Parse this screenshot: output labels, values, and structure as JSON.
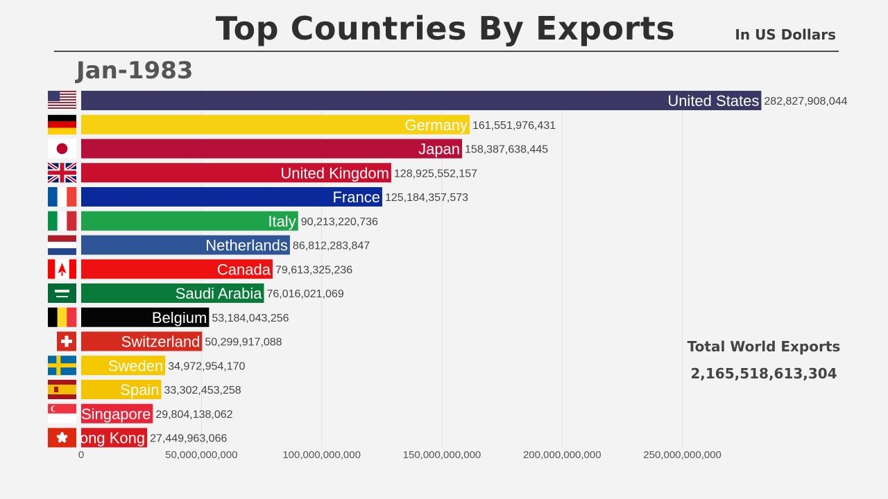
{
  "header": {
    "title": "Top Countries By Exports",
    "subtitle": "In US Dollars",
    "date": "Jan-1983"
  },
  "summary": {
    "label": "Total World Exports",
    "value": "2,165,518,613,304"
  },
  "chart_data": {
    "type": "bar",
    "orientation": "horizontal",
    "title": "Top Countries By Exports",
    "subtitle": "In US Dollars",
    "period": "Jan-1983",
    "xlim": [
      0,
      283000000000
    ],
    "x_ticks": [
      0,
      50000000000,
      100000000000,
      150000000000,
      200000000000,
      250000000000
    ],
    "x_tick_labels": [
      "0",
      "50,000,000,000",
      "100,000,000,000",
      "150,000,000,000",
      "200,000,000,000",
      "250,000,000,000"
    ],
    "grid": "vertical",
    "categories": [
      "United States",
      "Germany",
      "Japan",
      "United Kingdom",
      "France",
      "Italy",
      "Netherlands",
      "Canada",
      "Saudi Arabia",
      "Belgium",
      "Switzerland",
      "Sweden",
      "Spain",
      "Singapore",
      "Hong Kong"
    ],
    "values": [
      282827908044,
      161551976431,
      158387638445,
      128925552157,
      125184357573,
      90213220736,
      86812283847,
      79613325236,
      76016021069,
      53184043256,
      50299917088,
      34972954170,
      33302453258,
      29804138062,
      27449963066
    ],
    "value_labels": [
      "282,827,908,044",
      "161,551,976,431",
      "158,387,638,445",
      "128,925,552,157",
      "125,184,357,573",
      "90,213,220,736",
      "86,812,283,847",
      "79,613,325,236",
      "76,016,021,069",
      "53,184,043,256",
      "50,299,917,088",
      "34,972,954,170",
      "33,302,453,258",
      "29,804,138,062",
      "27,449,963,066"
    ],
    "colors": [
      "#3b3866",
      "#f5d112",
      "#b50f3a",
      "#c8102e",
      "#0a2a9c",
      "#1fa34a",
      "#2f5597",
      "#ee1111",
      "#0a7a3a",
      "#050505",
      "#d52b1e",
      "#f5c900",
      "#f5c400",
      "#e8263a",
      "#d81920"
    ],
    "flags": [
      "us-flag-icon",
      "germany-flag-icon",
      "japan-flag-icon",
      "uk-flag-icon",
      "france-flag-icon",
      "italy-flag-icon",
      "netherlands-flag-icon",
      "canada-flag-icon",
      "saudi-arabia-flag-icon",
      "belgium-flag-icon",
      "switzerland-flag-icon",
      "sweden-flag-icon",
      "spain-flag-icon",
      "singapore-flag-icon",
      "hong-kong-flag-icon"
    ]
  }
}
